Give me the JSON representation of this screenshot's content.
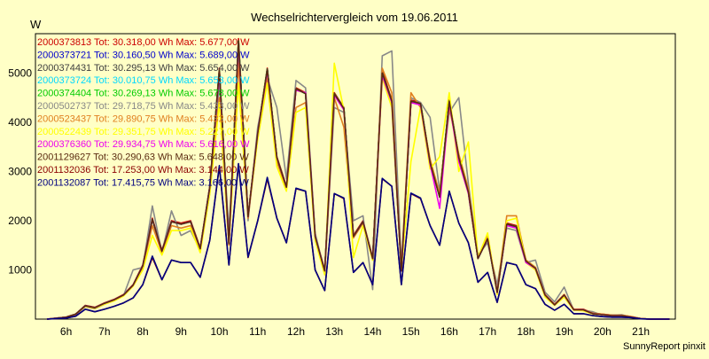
{
  "chart_data": {
    "type": "line",
    "title": "Wechselrichtervergleich vom 19.06.2011",
    "ylabel": "W",
    "xlabel": "",
    "footer": "SunnyReport pinxit",
    "x_ticks": [
      "6h",
      "7h",
      "8h",
      "9h",
      "10h",
      "11h",
      "12h",
      "13h",
      "14h",
      "15h",
      "16h",
      "17h",
      "18h",
      "19h",
      "20h",
      "21h"
    ],
    "xlim": [
      5.2,
      21.9
    ],
    "ylim": [
      0,
      5800
    ],
    "y_ticks": [
      1000,
      2000,
      3000,
      4000,
      5000
    ],
    "grid": true,
    "legend_position": "top-left",
    "x": [
      5.5,
      5.75,
      6.0,
      6.25,
      6.5,
      6.75,
      7.0,
      7.25,
      7.5,
      7.75,
      8.0,
      8.25,
      8.5,
      8.75,
      9.0,
      9.25,
      9.5,
      9.75,
      10.0,
      10.25,
      10.5,
      10.75,
      11.0,
      11.25,
      11.5,
      11.75,
      12.0,
      12.25,
      12.5,
      12.75,
      13.0,
      13.25,
      13.5,
      13.75,
      14.0,
      14.25,
      14.5,
      14.75,
      15.0,
      15.25,
      15.5,
      15.75,
      16.0,
      16.25,
      16.5,
      16.75,
      17.0,
      17.25,
      17.5,
      17.75,
      18.0,
      18.25,
      18.5,
      18.75,
      19.0,
      19.25,
      19.5,
      19.75,
      20.0,
      20.25,
      20.5,
      20.75,
      21.0,
      21.25,
      21.5,
      21.75
    ],
    "series": [
      {
        "name": "2000373813",
        "legend": "2000373813 Tot: 30.318,00 Wh Max: 5.677,00 W",
        "color": "#cc0000",
        "values": [
          0,
          20,
          40,
          100,
          280,
          240,
          330,
          400,
          500,
          700,
          1100,
          2050,
          1400,
          2000,
          1950,
          2000,
          1450,
          2700,
          5100,
          1550,
          5700,
          2100,
          3800,
          5100,
          3300,
          2700,
          4700,
          4600,
          1700,
          1000,
          4600,
          4300,
          1700,
          2000,
          1250,
          5050,
          4450,
          1000,
          4450,
          4400,
          3200,
          2500,
          4450,
          3300,
          2600,
          1250,
          1650,
          550,
          1950,
          1900,
          1200,
          1050,
          500,
          300,
          500,
          200,
          200,
          120,
          100,
          80,
          80,
          50,
          10,
          0,
          0,
          0
        ]
      },
      {
        "name": "2000373721",
        "legend": "2000373721 Tot: 30.160,50 Wh Max: 5.689,00 W",
        "color": "#0000cc",
        "values": [
          0,
          20,
          40,
          100,
          270,
          230,
          320,
          390,
          490,
          690,
          1080,
          2030,
          1380,
          1980,
          1930,
          1980,
          1430,
          2680,
          5050,
          1530,
          5650,
          2080,
          3780,
          5080,
          3280,
          2680,
          4680,
          4580,
          1680,
          980,
          4580,
          4280,
          1680,
          1980,
          1230,
          5000,
          4430,
          980,
          4430,
          4380,
          3180,
          2480,
          4430,
          3280,
          2580,
          1230,
          1630,
          540,
          1930,
          1880,
          1180,
          1030,
          490,
          290,
          490,
          190,
          190,
          110,
          90,
          70,
          70,
          40,
          10,
          0,
          0,
          0
        ]
      },
      {
        "name": "2000374431",
        "legend": "2000374431 Tot: 30.295,13 Wh Max: 5.654,00 W",
        "color": "#404040",
        "values": [
          0,
          20,
          40,
          100,
          270,
          230,
          320,
          390,
          490,
          690,
          1080,
          2030,
          1380,
          1980,
          1930,
          1980,
          1430,
          2680,
          5050,
          1530,
          5650,
          2080,
          3780,
          5080,
          3280,
          2680,
          4680,
          4580,
          1680,
          980,
          4580,
          4280,
          1680,
          1980,
          1230,
          5000,
          4430,
          980,
          4430,
          4380,
          3180,
          2480,
          4430,
          3280,
          2580,
          1230,
          1630,
          540,
          1930,
          1880,
          1180,
          1030,
          490,
          290,
          490,
          190,
          190,
          110,
          90,
          70,
          70,
          40,
          10,
          0,
          0,
          0
        ]
      },
      {
        "name": "2000373724",
        "legend": "2000373724 Tot: 30.010,75 Wh Max: 5.653,00 W",
        "color": "#00d8ff",
        "values": [
          0,
          20,
          40,
          100,
          270,
          230,
          320,
          390,
          490,
          690,
          1080,
          2030,
          1380,
          1980,
          1930,
          1980,
          1430,
          2680,
          5050,
          1530,
          5650,
          2080,
          3780,
          5080,
          3280,
          2680,
          4680,
          4580,
          1680,
          980,
          4580,
          4280,
          1680,
          1980,
          1230,
          5000,
          4430,
          980,
          4430,
          4380,
          3180,
          2480,
          4430,
          3280,
          2580,
          1230,
          1630,
          540,
          1930,
          1880,
          1180,
          1030,
          490,
          290,
          490,
          190,
          190,
          110,
          90,
          70,
          70,
          40,
          10,
          0,
          0,
          0
        ]
      },
      {
        "name": "2000374404",
        "legend": "2000374404 Tot: 30.269,13 Wh Max: 5.678,00 W",
        "color": "#00cc00",
        "values": [
          0,
          20,
          40,
          100,
          270,
          230,
          320,
          390,
          490,
          690,
          1080,
          2030,
          1380,
          1980,
          1930,
          1980,
          1430,
          2680,
          5050,
          1530,
          5650,
          2080,
          3780,
          5080,
          3280,
          2680,
          4680,
          4580,
          1680,
          980,
          4580,
          4280,
          1680,
          1980,
          1230,
          5000,
          4430,
          980,
          4430,
          4380,
          3180,
          2480,
          4430,
          3280,
          2580,
          1230,
          1630,
          540,
          1930,
          1880,
          1180,
          1030,
          490,
          290,
          490,
          190,
          190,
          110,
          90,
          70,
          70,
          40,
          10,
          0,
          0,
          0
        ]
      },
      {
        "name": "2000502737",
        "legend": "2000502737 Tot: 29.718,75 Wh Max: 5.433,00 W",
        "color": "#888888",
        "values": [
          0,
          20,
          40,
          90,
          250,
          210,
          300,
          380,
          480,
          1000,
          1050,
          2300,
          1350,
          2200,
          1700,
          1800,
          1400,
          2550,
          4800,
          1800,
          5300,
          2000,
          3900,
          4900,
          4300,
          2850,
          4850,
          4700,
          1750,
          950,
          4300,
          4200,
          2000,
          2100,
          600,
          5350,
          5450,
          1100,
          4500,
          4400,
          4100,
          2600,
          4200,
          4500,
          2750,
          1300,
          1550,
          700,
          1850,
          1800,
          1150,
          1200,
          550,
          350,
          650,
          180,
          180,
          150,
          80,
          80,
          90,
          40,
          10,
          0,
          0,
          0
        ]
      },
      {
        "name": "2000523437",
        "legend": "2000523437 Tot: 29.890,75 Wh Max: 5.432,00 W",
        "color": "#e08020",
        "values": [
          0,
          20,
          40,
          100,
          260,
          220,
          310,
          380,
          480,
          680,
          1050,
          1900,
          1350,
          1900,
          1850,
          1900,
          1400,
          2600,
          4500,
          1500,
          5200,
          2050,
          3700,
          4900,
          3200,
          2650,
          4300,
          4400,
          1650,
          950,
          4500,
          3900,
          1650,
          1950,
          1200,
          5100,
          4600,
          1000,
          4600,
          4300,
          3250,
          2550,
          4300,
          3350,
          2650,
          1250,
          1700,
          560,
          2100,
          2100,
          1200,
          1050,
          500,
          300,
          500,
          200,
          190,
          120,
          100,
          80,
          80,
          50,
          10,
          0,
          0,
          0
        ]
      },
      {
        "name": "2000522439",
        "legend": "2000522439 Tot: 29.351,75 Wh Max: 5.227,00 W",
        "color": "#ffff00",
        "values": [
          0,
          20,
          40,
          100,
          260,
          220,
          300,
          370,
          470,
          670,
          1000,
          1700,
          1300,
          1800,
          1800,
          1850,
          1350,
          2550,
          4400,
          1550,
          4800,
          2100,
          3650,
          4800,
          3100,
          2600,
          4200,
          4300,
          1600,
          900,
          5200,
          4250,
          1250,
          1900,
          1200,
          4900,
          4300,
          1000,
          3200,
          4300,
          3050,
          3300,
          4600,
          3000,
          3600,
          1250,
          1750,
          500,
          2000,
          2050,
          1150,
          1000,
          450,
          280,
          450,
          180,
          170,
          100,
          90,
          70,
          70,
          40,
          10,
          0,
          0,
          0
        ]
      },
      {
        "name": "2000376360",
        "legend": "2000376360 Tot: 29.934,75 Wh Max: 5.616,00 W",
        "color": "#ee00ee",
        "values": [
          0,
          20,
          40,
          100,
          270,
          230,
          320,
          390,
          490,
          690,
          1080,
          2030,
          1380,
          1980,
          1930,
          1980,
          1430,
          2680,
          5000,
          1530,
          5600,
          2080,
          3780,
          5050,
          3280,
          2680,
          4650,
          4600,
          1680,
          980,
          4550,
          4250,
          1680,
          1980,
          1230,
          4950,
          4400,
          980,
          4400,
          4350,
          3150,
          2250,
          4400,
          3200,
          2550,
          1230,
          1630,
          540,
          1900,
          1850,
          1150,
          1030,
          490,
          290,
          490,
          190,
          190,
          110,
          90,
          70,
          70,
          40,
          10,
          0,
          0,
          0
        ]
      },
      {
        "name": "2001129627",
        "legend": "2001129627 Tot: 30.290,63 Wh Max: 5.648,00 W",
        "color": "#5a2a10",
        "values": [
          0,
          20,
          40,
          100,
          270,
          230,
          320,
          390,
          490,
          690,
          1080,
          2030,
          1380,
          1980,
          1930,
          1980,
          1430,
          2680,
          5050,
          1530,
          5650,
          2080,
          3780,
          5080,
          3280,
          2680,
          4680,
          4580,
          1680,
          980,
          4580,
          4280,
          1680,
          1980,
          1230,
          5000,
          4430,
          980,
          4430,
          4380,
          3180,
          2480,
          4430,
          3280,
          2580,
          1230,
          1630,
          540,
          1930,
          1880,
          1180,
          1030,
          490,
          290,
          490,
          190,
          190,
          110,
          90,
          70,
          70,
          40,
          10,
          0,
          0,
          0
        ]
      },
      {
        "name": "2001132036",
        "legend": "2001132036 Tot: 17.253,00 Wh Max: 3.144,00 W",
        "color": "#8b0000",
        "values": [
          0,
          10,
          20,
          60,
          200,
          150,
          200,
          260,
          330,
          430,
          700,
          1250,
          800,
          1200,
          1150,
          1150,
          850,
          1600,
          3100,
          1100,
          3150,
          1250,
          2000,
          2850,
          2050,
          1550,
          2650,
          2600,
          1000,
          580,
          2550,
          2450,
          950,
          1150,
          700,
          2850,
          2700,
          700,
          2550,
          2450,
          1900,
          1500,
          2600,
          1950,
          1550,
          750,
          950,
          340,
          1150,
          1100,
          700,
          620,
          300,
          180,
          300,
          110,
          110,
          70,
          50,
          40,
          40,
          30,
          5,
          0,
          0,
          0
        ]
      },
      {
        "name": "2001132087",
        "legend": "2001132087 Tot: 17.415,75 Wh Max: 3.166,00 W",
        "color": "#000080",
        "values": [
          0,
          10,
          20,
          60,
          200,
          150,
          200,
          260,
          330,
          430,
          700,
          1280,
          800,
          1200,
          1150,
          1150,
          850,
          1600,
          3120,
          1100,
          3160,
          1260,
          2000,
          2880,
          2050,
          1550,
          2660,
          2600,
          1000,
          580,
          2550,
          2460,
          950,
          1150,
          700,
          2860,
          2700,
          700,
          2560,
          2460,
          1900,
          1500,
          2600,
          1950,
          1550,
          750,
          950,
          340,
          1150,
          1100,
          700,
          620,
          300,
          180,
          300,
          110,
          110,
          70,
          50,
          40,
          40,
          30,
          5,
          0,
          0,
          0
        ]
      }
    ]
  }
}
